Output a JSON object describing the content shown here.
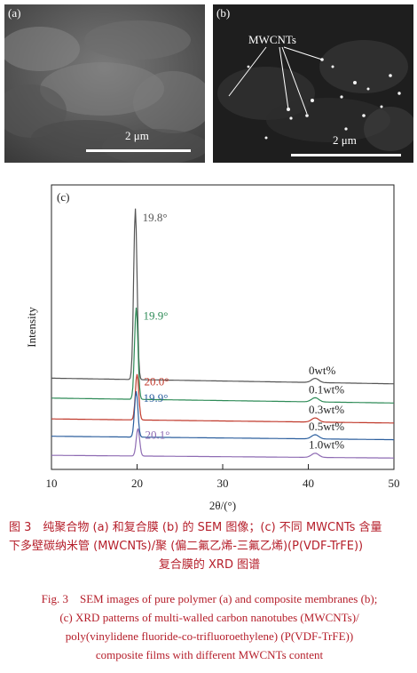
{
  "sem_a": {
    "label": "(a)",
    "scale": "2 μm"
  },
  "sem_b": {
    "label": "(b)",
    "scale": "2 μm",
    "annotation": "MWCNTs"
  },
  "chart_data": {
    "type": "line",
    "panel_label": "(c)",
    "xlabel": "2θ/(°)",
    "ylabel": "Intensity",
    "xlim": [
      10,
      50
    ],
    "xticks": [
      10,
      20,
      30,
      40,
      50
    ],
    "grid": false,
    "series": [
      {
        "name": "0wt%",
        "peak_label": "19.8°",
        "peak_x": 19.8,
        "color": "#555555",
        "baseline": 0.95,
        "peak_height": 2.05
      },
      {
        "name": "0.1wt%",
        "peak_label": "19.9°",
        "peak_x": 19.9,
        "color": "#2e8b57",
        "baseline": 0.72,
        "peak_height": 1.1
      },
      {
        "name": "0.3wt%",
        "peak_label": "20.0°",
        "peak_x": 20.0,
        "color": "#c0392b",
        "baseline": 0.48,
        "peak_height": 0.55
      },
      {
        "name": "0.5wt%",
        "peak_label": "19.9°",
        "peak_x": 19.9,
        "color": "#2c5f9e",
        "baseline": 0.28,
        "peak_height": 0.55
      },
      {
        "name": "1.0wt%",
        "peak_label": "20.1°",
        "peak_x": 20.1,
        "color": "#8e6bb3",
        "baseline": 0.06,
        "peak_height": 0.33
      }
    ]
  },
  "caption_cn": [
    "图 3　纯聚合物 (a) 和复合膜 (b) 的 SEM 图像；(c) 不同 MWCNTs 含量",
    "下多壁碳纳米管 (MWCNTs)/聚 (偏二氟乙烯-三氟乙烯)(P(VDF-TrFE))",
    "复合膜的 XRD 图谱"
  ],
  "caption_en": [
    "Fig. 3　SEM images of pure polymer (a) and composite membranes (b);",
    "(c) XRD patterns of multi-walled carbon nanotubes (MWCNTs)/",
    "poly(vinylidene fluoride-co-trifluoroethylene) (P(VDF-TrFE))",
    "composite films with different MWCNTs content"
  ]
}
